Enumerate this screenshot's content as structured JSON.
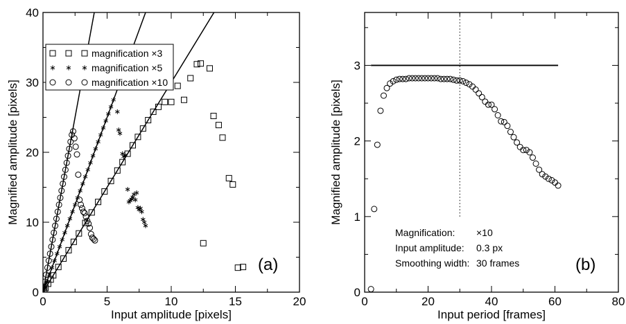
{
  "figure": {
    "colors": {
      "ink": "#000000",
      "background": "#ffffff"
    }
  },
  "chart_data": [
    {
      "type": "scatter",
      "panel_label": "(a)",
      "title": "",
      "xlabel": "Input amplitude [pixels]",
      "ylabel": "Magnified amplitude [pixels]",
      "xlim": [
        0,
        20
      ],
      "ylim": [
        0,
        40
      ],
      "xticks": [
        "0",
        "5",
        "10",
        "15",
        "20"
      ],
      "yticks": [
        "0",
        "10",
        "20",
        "30",
        "40"
      ],
      "grid": false,
      "legend_position": "top-left",
      "reference_lines": [
        {
          "slope": 3,
          "x_range": [
            0,
            13.33
          ]
        },
        {
          "slope": 5,
          "x_range": [
            0,
            8.0
          ]
        },
        {
          "slope": 10,
          "x_range": [
            0,
            4.0
          ]
        }
      ],
      "series": [
        {
          "name": "magnification ×3",
          "marker": "square",
          "x": [
            0.1,
            0.2,
            0.4,
            0.6,
            0.8,
            1.2,
            1.6,
            2.0,
            2.4,
            2.8,
            3.3,
            3.8,
            4.3,
            4.8,
            5.3,
            5.8,
            6.2,
            6.6,
            7.0,
            7.4,
            7.8,
            8.2,
            8.6,
            9.0,
            9.5,
            10.0,
            10.5,
            11.0,
            11.5,
            12.0,
            12.3,
            12.5,
            13.0,
            13.3,
            13.7,
            14.0,
            14.5,
            14.8,
            15.2,
            15.6
          ],
          "y": [
            0.3,
            0.6,
            1.2,
            1.8,
            2.4,
            3.6,
            4.8,
            6.0,
            7.2,
            8.4,
            9.9,
            11.4,
            12.9,
            14.4,
            15.9,
            17.4,
            18.6,
            19.8,
            21.0,
            22.2,
            23.4,
            24.6,
            25.8,
            26.5,
            27.2,
            27.2,
            29.5,
            27.5,
            30.6,
            32.6,
            32.7,
            7.0,
            32.0,
            25.2,
            23.9,
            22.1,
            16.3,
            15.4,
            3.5,
            3.6
          ]
        },
        {
          "name": "magnification ×5",
          "marker": "star",
          "x": [
            0.1,
            0.3,
            0.5,
            0.7,
            0.9,
            1.1,
            1.3,
            1.5,
            1.7,
            1.9,
            2.1,
            2.3,
            2.5,
            2.7,
            2.9,
            3.1,
            3.3,
            3.5,
            3.7,
            3.9,
            4.1,
            4.3,
            4.5,
            4.7,
            4.9,
            5.1,
            5.3,
            5.5,
            5.8,
            5.9,
            6.0,
            6.2,
            6.3,
            6.4,
            6.6,
            6.7,
            6.8,
            6.9,
            7.0,
            7.1,
            7.2,
            7.3,
            7.4,
            7.5,
            7.6,
            7.7,
            7.8,
            7.9,
            8.0
          ],
          "y": [
            0.5,
            1.5,
            2.5,
            3.5,
            4.5,
            5.5,
            6.5,
            7.5,
            8.5,
            9.5,
            10.5,
            11.5,
            12.5,
            13.5,
            14.5,
            15.5,
            16.5,
            17.5,
            18.5,
            19.5,
            20.5,
            21.5,
            22.5,
            23.5,
            24.5,
            25.5,
            26.5,
            27.5,
            25.8,
            23.2,
            22.7,
            19.8,
            19.4,
            19.6,
            14.7,
            12.9,
            13.1,
            13.3,
            13.6,
            14.0,
            13.2,
            14.2,
            12.1,
            11.8,
            12.0,
            11.5,
            10.4,
            10.0,
            9.5
          ]
        },
        {
          "name": "magnification ×10",
          "marker": "circle",
          "x": [
            0.05,
            0.15,
            0.25,
            0.35,
            0.45,
            0.55,
            0.65,
            0.75,
            0.85,
            0.95,
            1.05,
            1.15,
            1.25,
            1.35,
            1.45,
            1.55,
            1.65,
            1.75,
            1.85,
            1.95,
            2.05,
            2.15,
            2.25,
            2.35,
            2.45,
            2.55,
            2.65,
            2.75,
            2.85,
            2.95,
            3.05,
            3.15,
            3.25,
            3.35,
            3.45,
            3.55,
            3.65,
            3.75,
            3.85,
            3.95,
            4.05
          ],
          "y": [
            0.5,
            1.5,
            2.5,
            3.5,
            4.5,
            5.5,
            6.5,
            7.5,
            8.5,
            9.5,
            10.5,
            11.5,
            12.5,
            13.5,
            14.5,
            15.5,
            16.5,
            17.5,
            18.5,
            19.5,
            20.5,
            21.5,
            22.5,
            23.0,
            22.0,
            20.8,
            19.7,
            16.8,
            13.2,
            12.5,
            12.0,
            11.5,
            11.3,
            10.8,
            10.2,
            9.8,
            9.2,
            8.3,
            7.8,
            7.6,
            7.4
          ]
        }
      ]
    },
    {
      "type": "scatter",
      "panel_label": "(b)",
      "title": "",
      "xlabel": "Input period [frames]",
      "ylabel": "Magnified amplitude [pixels]",
      "xlim": [
        0,
        80
      ],
      "ylim": [
        0,
        3.7
      ],
      "xticks": [
        "0",
        "20",
        "40",
        "60",
        "80"
      ],
      "yticks": [
        "0",
        "1",
        "2",
        "3"
      ],
      "grid": false,
      "reference_lines": [
        {
          "type": "horizontal",
          "y": 3.0,
          "x_range": [
            2,
            61
          ]
        },
        {
          "type": "vertical-dotted",
          "x": 30,
          "y_range": [
            1.0,
            3.7
          ]
        }
      ],
      "annotations": [
        {
          "label": "Magnification:",
          "value": "×10"
        },
        {
          "label": "Input amplitude:",
          "value": "0.3 px"
        },
        {
          "label": "Smoothing width:",
          "value": "30 frames"
        }
      ],
      "series": [
        {
          "marker": "circle",
          "x": [
            2,
            3,
            4,
            5,
            6,
            7,
            8,
            9,
            10,
            11,
            12,
            13,
            14,
            15,
            16,
            17,
            18,
            19,
            20,
            21,
            22,
            23,
            24,
            25,
            26,
            27,
            28,
            29,
            30,
            31,
            32,
            33,
            34,
            35,
            36,
            37,
            38,
            39,
            40,
            41,
            42,
            43,
            44,
            45,
            46,
            47,
            48,
            49,
            50,
            51,
            52,
            53,
            54,
            55,
            56,
            57,
            58,
            59,
            60,
            61
          ],
          "y": [
            0.04,
            1.1,
            1.95,
            2.4,
            2.6,
            2.7,
            2.76,
            2.79,
            2.81,
            2.82,
            2.82,
            2.82,
            2.83,
            2.83,
            2.83,
            2.83,
            2.83,
            2.83,
            2.83,
            2.83,
            2.83,
            2.83,
            2.82,
            2.82,
            2.82,
            2.82,
            2.81,
            2.8,
            2.8,
            2.79,
            2.77,
            2.75,
            2.72,
            2.68,
            2.63,
            2.58,
            2.52,
            2.48,
            2.48,
            2.42,
            2.34,
            2.26,
            2.25,
            2.2,
            2.12,
            2.05,
            1.98,
            1.92,
            1.88,
            1.88,
            1.85,
            1.78,
            1.7,
            1.62,
            1.56,
            1.53,
            1.5,
            1.48,
            1.45,
            1.41
          ]
        }
      ]
    }
  ]
}
